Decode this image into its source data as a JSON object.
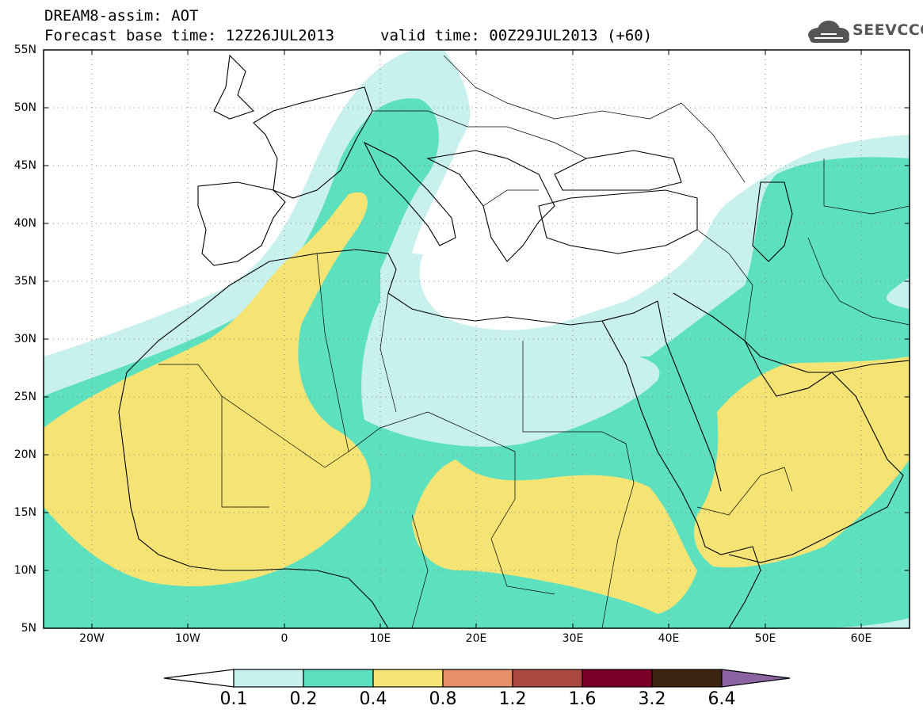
{
  "title": {
    "line1": "DREAM8-assim: AOT",
    "line2": "Forecast base time: 12Z26JUL2013",
    "valid": "valid time: 00Z29JUL2013 (+60)"
  },
  "logo": {
    "text": "SEEVCCC",
    "icon": "cloud-icon"
  },
  "map": {
    "lat_labels": [
      "55N",
      "50N",
      "45N",
      "40N",
      "35N",
      "30N",
      "25N",
      "20N",
      "15N",
      "10N",
      "5N"
    ],
    "lon_labels": [
      "20W",
      "10W",
      "0",
      "10E",
      "20E",
      "30E",
      "40E",
      "50E",
      "60E"
    ],
    "lon_range": [
      -25,
      65
    ],
    "lat_range": [
      5,
      55
    ]
  },
  "colorbar": {
    "levels": [
      "0.1",
      "0.2",
      "0.4",
      "0.8",
      "1.2",
      "1.6",
      "3.2",
      "6.4"
    ],
    "colors": [
      "#ffffff",
      "#c8f0ec",
      "#5ce0be",
      "#f5e474",
      "#e8906a",
      "#a84840",
      "#7a0028",
      "#3c2410",
      "#8c64a4"
    ]
  },
  "palette": {
    "c01": "#c8f0ec",
    "c02": "#5ce0be",
    "c04": "#f5e474"
  }
}
